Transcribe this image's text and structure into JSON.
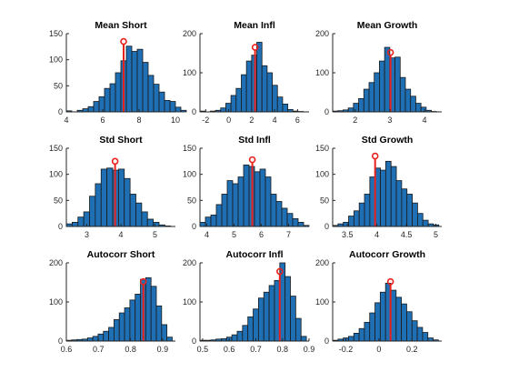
{
  "colors": {
    "bar": "#1f6fb4",
    "marker": "#e8211c"
  },
  "chart_data": [
    {
      "type": "bar",
      "title": "Mean Short",
      "bin_start": 4.0,
      "bin_width": 0.3,
      "counts": [
        2,
        0,
        3,
        6,
        10,
        20,
        29,
        45,
        54,
        75,
        98,
        126,
        116,
        120,
        95,
        70,
        53,
        38,
        22,
        20,
        9,
        3
      ],
      "xlim": [
        4.0,
        10.0
      ],
      "ylim": [
        0,
        150
      ],
      "xticks": [
        4,
        6,
        8,
        10
      ],
      "yticks": [
        0,
        50,
        100,
        150
      ],
      "marker": 7.15,
      "marker_height": 135
    },
    {
      "type": "bar",
      "title": "Mean Infl",
      "bin_start": -2.5,
      "bin_width": 0.45,
      "counts": [
        2,
        0,
        2,
        4,
        10,
        22,
        42,
        60,
        95,
        130,
        145,
        178,
        118,
        100,
        68,
        38,
        20,
        6,
        2,
        1
      ],
      "xlim": [
        -2.5,
        7.0
      ],
      "ylim": [
        0,
        200
      ],
      "xticks": [
        -2,
        0,
        2,
        4,
        6
      ],
      "yticks": [
        0,
        100,
        200
      ],
      "marker": 2.3,
      "marker_height": 165
    },
    {
      "type": "bar",
      "title": "Mean Growth",
      "bin_start": 1.35,
      "bin_width": 0.15,
      "counts": [
        2,
        3,
        5,
        10,
        22,
        34,
        58,
        75,
        100,
        130,
        165,
        138,
        140,
        88,
        58,
        40,
        22,
        12,
        4,
        1
      ],
      "xlim": [
        1.35,
        4.5
      ],
      "ylim": [
        0,
        200
      ],
      "xticks": [
        2,
        3,
        4
      ],
      "yticks": [
        0,
        100,
        200
      ],
      "marker": 3.02,
      "marker_height": 152
    },
    {
      "type": "bar",
      "title": "Std Short",
      "bin_start": 2.4,
      "bin_width": 0.17,
      "counts": [
        5,
        8,
        18,
        28,
        58,
        82,
        110,
        112,
        108,
        110,
        92,
        62,
        45,
        28,
        14,
        8,
        3,
        1
      ],
      "xlim": [
        2.4,
        5.6
      ],
      "ylim": [
        0,
        150
      ],
      "xticks": [
        3,
        4,
        5
      ],
      "yticks": [
        0,
        50,
        100,
        150
      ],
      "marker": 3.83,
      "marker_height": 125
    },
    {
      "type": "bar",
      "title": "Std Infl",
      "bin_start": 3.75,
      "bin_width": 0.2,
      "counts": [
        8,
        18,
        22,
        42,
        62,
        88,
        82,
        95,
        118,
        115,
        105,
        110,
        95,
        62,
        48,
        35,
        25,
        15,
        8,
        2
      ],
      "xlim": [
        3.75,
        7.75
      ],
      "ylim": [
        0,
        150
      ],
      "xticks": [
        4,
        5,
        6,
        7
      ],
      "yticks": [
        0,
        50,
        100,
        150
      ],
      "marker": 5.67,
      "marker_height": 128
    },
    {
      "type": "bar",
      "title": "Std Growth",
      "bin_start": 3.25,
      "bin_width": 0.09,
      "counts": [
        2,
        5,
        8,
        20,
        30,
        45,
        62,
        95,
        112,
        108,
        125,
        115,
        88,
        72,
        62,
        45,
        25,
        12,
        5,
        3
      ],
      "xlim": [
        3.25,
        5.1
      ],
      "ylim": [
        0,
        150
      ],
      "xticks": [
        3.5,
        4,
        4.5,
        5
      ],
      "yticks": [
        0,
        50,
        100,
        150
      ],
      "marker": 3.97,
      "marker_height": 135
    },
    {
      "type": "bar",
      "title": "Autocorr Short",
      "bin_start": 0.6,
      "bin_width": 0.0165,
      "counts": [
        2,
        3,
        4,
        5,
        8,
        12,
        18,
        25,
        35,
        55,
        72,
        85,
        105,
        120,
        158,
        162,
        140,
        90,
        42,
        10
      ],
      "xlim": [
        0.6,
        0.94
      ],
      "ylim": [
        0,
        200
      ],
      "xticks": [
        0.6,
        0.7,
        0.8,
        0.9
      ],
      "yticks": [
        0,
        100,
        200
      ],
      "marker": 0.84,
      "marker_height": 152
    },
    {
      "type": "bar",
      "title": "Autocorr Infl",
      "bin_start": 0.49,
      "bin_width": 0.02,
      "counts": [
        2,
        2,
        3,
        5,
        6,
        10,
        16,
        25,
        40,
        62,
        82,
        110,
        125,
        142,
        155,
        200,
        165,
        115,
        58,
        12
      ],
      "xlim": [
        0.49,
        0.9
      ],
      "ylim": [
        0,
        200
      ],
      "xticks": [
        0.5,
        0.6,
        0.7,
        0.8,
        0.9
      ],
      "yticks": [
        0,
        100,
        200
      ],
      "marker": 0.79,
      "marker_height": 178
    },
    {
      "type": "bar",
      "title": "Autocorr Growth",
      "bin_start": -0.28,
      "bin_width": 0.032,
      "counts": [
        2,
        5,
        8,
        12,
        20,
        32,
        48,
        72,
        98,
        125,
        148,
        130,
        112,
        95,
        75,
        52,
        35,
        22,
        8,
        3
      ],
      "xlim": [
        -0.28,
        0.38
      ],
      "ylim": [
        0,
        200
      ],
      "xticks": [
        -0.2,
        0,
        0.2
      ],
      "yticks": [
        0,
        100,
        200
      ],
      "marker": 0.07,
      "marker_height": 152
    }
  ]
}
